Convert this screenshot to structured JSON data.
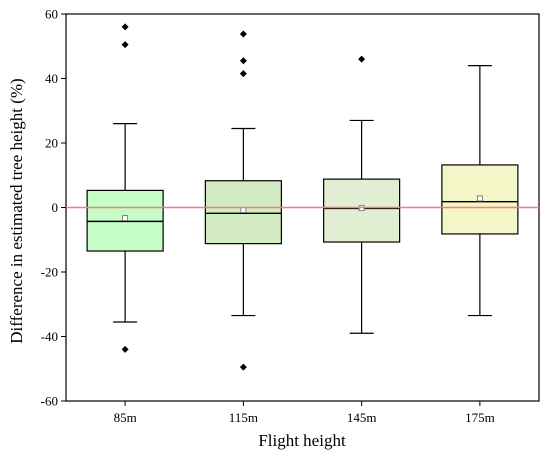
{
  "chart_data": {
    "type": "box",
    "xlabel": "Flight height",
    "ylabel": "Difference in estimated tree height (%)",
    "ylim": [
      -60,
      60
    ],
    "yticks": [
      -60,
      -40,
      -20,
      0,
      20,
      40,
      60
    ],
    "grid": false,
    "reference_line": {
      "y": 0,
      "color": "#f08080"
    },
    "categories": [
      "85m",
      "115m",
      "145m",
      "175m"
    ],
    "boxes": [
      {
        "category": "85m",
        "whisker_low": -35.5,
        "q1": -13.5,
        "median": -4.3,
        "q3": 5.3,
        "whisker_high": 26,
        "mean": -3.3,
        "outliers": [
          56,
          50.5,
          -44
        ],
        "fill": "#c6fdc6"
      },
      {
        "category": "115m",
        "whisker_low": -33.5,
        "q1": -11.2,
        "median": -1.8,
        "q3": 8.3,
        "whisker_high": 24.5,
        "mean": -0.8,
        "outliers": [
          53.8,
          45.5,
          41.5,
          -49.5
        ],
        "fill": "#d3ecc3"
      },
      {
        "category": "145m",
        "whisker_low": -39,
        "q1": -10.7,
        "median": -0.3,
        "q3": 8.8,
        "whisker_high": 27,
        "mean": -0.2,
        "outliers": [
          46
        ],
        "fill": "#e1eed2"
      },
      {
        "category": "175m",
        "whisker_low": -33.5,
        "q1": -8.2,
        "median": 1.8,
        "q3": 13.2,
        "whisker_high": 44,
        "mean": 2.8,
        "outliers": [],
        "fill": "#f5f6c8"
      }
    ]
  }
}
